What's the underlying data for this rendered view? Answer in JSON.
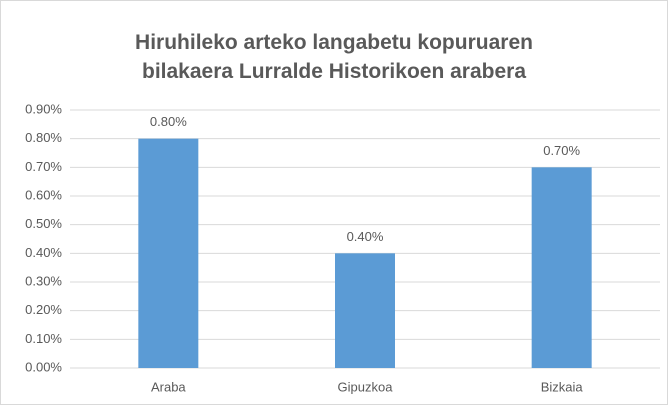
{
  "chart_data": {
    "type": "bar",
    "title": "Hiruhileko arteko langabetu kopuruaren bilakaera Lurralde Historikoen arabera",
    "categories": [
      "Araba",
      "Gipuzkoa",
      "Bizkaia"
    ],
    "values": [
      0.8,
      0.4,
      0.7
    ],
    "value_labels": [
      "0.80%",
      "0.40%",
      "0.70%"
    ],
    "color": "#5b9bd5",
    "ylim": [
      0,
      0.9
    ],
    "yticks": [
      {
        "value": 0,
        "label": "0.00%"
      },
      {
        "value": 0.1,
        "label": "0.10%"
      },
      {
        "value": 0.2,
        "label": "0.20%"
      },
      {
        "value": 0.3,
        "label": "0.30%"
      },
      {
        "value": 0.4,
        "label": "0.40%"
      },
      {
        "value": 0.5,
        "label": "0.50%"
      },
      {
        "value": 0.6,
        "label": "0.60%"
      },
      {
        "value": 0.7,
        "label": "0.70%"
      },
      {
        "value": 0.8,
        "label": "0.80%"
      },
      {
        "value": 0.9,
        "label": "0.90%"
      }
    ],
    "grid": true
  }
}
